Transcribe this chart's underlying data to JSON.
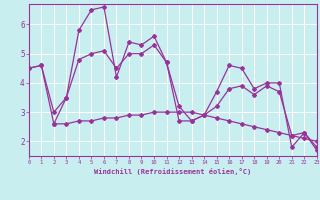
{
  "xlabel": "Windchill (Refroidissement éolien,°C)",
  "bg_color": "#c8eef0",
  "grid_color": "#ffffff",
  "line_color": "#993399",
  "marker": "D",
  "marker_size": 2.0,
  "line_width": 0.9,
  "xlim": [
    0,
    23
  ],
  "ylim": [
    1.5,
    6.7
  ],
  "yticks": [
    2,
    3,
    4,
    5,
    6
  ],
  "xticks": [
    0,
    1,
    2,
    3,
    4,
    5,
    6,
    7,
    8,
    9,
    10,
    11,
    12,
    13,
    14,
    15,
    16,
    17,
    18,
    19,
    20,
    21,
    22,
    23
  ],
  "line1_x": [
    0,
    1,
    2,
    3,
    4,
    5,
    6,
    7,
    8,
    9,
    10,
    11,
    12,
    13,
    14,
    15,
    16,
    17,
    18,
    19,
    20,
    21,
    22,
    23
  ],
  "line1_y": [
    4.5,
    4.6,
    2.6,
    3.5,
    5.8,
    6.5,
    6.6,
    4.2,
    5.4,
    5.3,
    5.6,
    4.7,
    2.7,
    2.7,
    2.9,
    3.7,
    4.6,
    4.5,
    3.8,
    4.0,
    4.0,
    1.8,
    2.3,
    1.7
  ],
  "line2_x": [
    0,
    1,
    2,
    3,
    4,
    5,
    6,
    7,
    8,
    9,
    10,
    11,
    12,
    13,
    14,
    15,
    16,
    17,
    18,
    19,
    20,
    21,
    22,
    23
  ],
  "line2_y": [
    4.5,
    4.6,
    3.0,
    3.5,
    4.8,
    5.0,
    5.1,
    4.5,
    5.0,
    5.0,
    5.3,
    4.7,
    3.2,
    2.7,
    2.9,
    3.2,
    3.8,
    3.9,
    3.6,
    3.9,
    3.7,
    2.2,
    2.3,
    1.8
  ],
  "line3_x": [
    2,
    3,
    4,
    5,
    6,
    7,
    8,
    9,
    10,
    11,
    12,
    13,
    14,
    15,
    16,
    17,
    18,
    19,
    20,
    21,
    22,
    23
  ],
  "line3_y": [
    2.6,
    2.6,
    2.7,
    2.7,
    2.8,
    2.8,
    2.9,
    2.9,
    3.0,
    3.0,
    3.0,
    3.0,
    2.9,
    2.8,
    2.7,
    2.6,
    2.5,
    2.4,
    2.3,
    2.2,
    2.1,
    2.0
  ]
}
